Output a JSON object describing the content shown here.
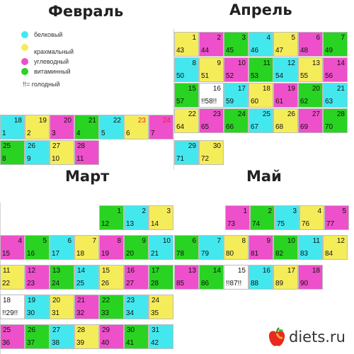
{
  "titles": [
    "Февраль",
    "Апрель",
    "Март",
    "Май"
  ],
  "legend": {
    "items": [
      {
        "label": "белковый",
        "color": "#43e8ee"
      },
      {
        "label": "крахмальный",
        "color": "#f5ec5a"
      },
      {
        "label": "углеводный",
        "color": "#ee4fca"
      },
      {
        "label": "витаминный",
        "color": "#29d321"
      }
    ],
    "fast_note": "!!= голодный"
  },
  "logo": {
    "text": "diets.ru"
  },
  "colors": {
    "C": "#43e8ee",
    "Y": "#f5ec5a",
    "M": "#ee4fca",
    "G": "#29d321",
    "W": "#ffffff",
    "R": "#e8291f"
  },
  "grids": [
    {
      "id": "feb",
      "cells": [
        {
          "c": "C",
          "t": [
            [
              "tr",
              "18"
            ],
            [
              "bl",
              "1"
            ]
          ]
        },
        {
          "c": "Y",
          "t": [
            [
              "tr",
              "19"
            ],
            [
              "bl",
              "2"
            ]
          ]
        },
        {
          "c": "M",
          "t": [
            [
              "tr",
              "20"
            ],
            [
              "bl",
              "3"
            ]
          ]
        },
        {
          "c": "G",
          "t": [
            [
              "tr",
              "21"
            ],
            [
              "bl",
              "4"
            ]
          ]
        },
        {
          "c": "C",
          "t": [
            [
              "tr",
              "22"
            ],
            [
              "bl",
              "5"
            ]
          ]
        },
        {
          "c": "Y",
          "t": [
            [
              "tr",
              "23"
            ],
            [
              "bl",
              "6"
            ]
          ],
          "red": true
        },
        {
          "c": "M",
          "t": [
            [
              "tr",
              "24"
            ],
            [
              "bl",
              "7"
            ]
          ],
          "red": true
        },
        {
          "c": "G",
          "t": [
            [
              "tl",
              "25"
            ],
            [
              "bl",
              "8"
            ]
          ]
        },
        {
          "c": "C",
          "t": [
            [
              "tl",
              "26"
            ],
            [
              "bl",
              "9"
            ]
          ]
        },
        {
          "c": "Y",
          "t": [
            [
              "tl",
              "27"
            ],
            [
              "bl",
              "10"
            ]
          ]
        },
        {
          "c": "M",
          "t": [
            [
              "tl",
              "28"
            ],
            [
              "bl",
              "11"
            ]
          ]
        }
      ]
    },
    {
      "id": "apr",
      "cells": [
        {
          "c": "Y",
          "t": [
            [
              "tr",
              "1"
            ],
            [
              "bl",
              "43"
            ]
          ]
        },
        {
          "c": "M",
          "t": [
            [
              "tr",
              "2"
            ],
            [
              "bl",
              "44"
            ]
          ]
        },
        {
          "c": "G",
          "t": [
            [
              "tr",
              "3"
            ],
            [
              "bl",
              "45"
            ]
          ]
        },
        {
          "c": "C",
          "t": [
            [
              "tr",
              "4"
            ],
            [
              "bl",
              "46"
            ]
          ]
        },
        {
          "c": "Y",
          "t": [
            [
              "tr",
              "5"
            ],
            [
              "bl",
              "47"
            ]
          ]
        },
        {
          "c": "M",
          "t": [
            [
              "tr",
              "6"
            ],
            [
              "bl",
              "48"
            ]
          ]
        },
        {
          "c": "G",
          "t": [
            [
              "tr",
              "7"
            ],
            [
              "bl",
              "49"
            ]
          ]
        },
        {
          "c": "C",
          "t": [
            [
              "tr",
              "8"
            ],
            [
              "bl",
              "50"
            ]
          ]
        },
        {
          "c": "Y",
          "t": [
            [
              "tr",
              "9"
            ],
            [
              "bl",
              "51"
            ]
          ]
        },
        {
          "c": "M",
          "t": [
            [
              "tr",
              "10"
            ],
            [
              "bl",
              "52"
            ]
          ]
        },
        {
          "c": "G",
          "t": [
            [
              "tr",
              "11"
            ],
            [
              "bl",
              "53"
            ]
          ]
        },
        {
          "c": "C",
          "t": [
            [
              "tr",
              "12"
            ],
            [
              "bl",
              "54"
            ]
          ]
        },
        {
          "c": "Y",
          "t": [
            [
              "tr",
              "13"
            ],
            [
              "bl",
              "55"
            ]
          ]
        },
        {
          "c": "M",
          "t": [
            [
              "tr",
              "14"
            ],
            [
              "bl",
              "56"
            ]
          ]
        },
        {
          "c": "G",
          "t": [
            [
              "tr",
              "15"
            ],
            [
              "bl",
              "57"
            ]
          ]
        },
        {
          "c": "W",
          "t": [
            [
              "tr",
              "16"
            ],
            [
              "bl",
              "!!58!!"
            ]
          ]
        },
        {
          "c": "C",
          "t": [
            [
              "tr",
              "17"
            ],
            [
              "bl",
              "59"
            ]
          ]
        },
        {
          "c": "Y",
          "t": [
            [
              "tr",
              "18"
            ],
            [
              "bl",
              "60"
            ]
          ]
        },
        {
          "c": "M",
          "t": [
            [
              "tr",
              "19"
            ],
            [
              "bl",
              "61"
            ]
          ]
        },
        {
          "c": "G",
          "t": [
            [
              "tr",
              "20"
            ],
            [
              "bl",
              "62"
            ]
          ]
        },
        {
          "c": "C",
          "t": [
            [
              "tr",
              "21"
            ],
            [
              "bl",
              "63"
            ]
          ]
        },
        {
          "c": "Y",
          "t": [
            [
              "tr",
              "22"
            ],
            [
              "bl",
              "64"
            ]
          ]
        },
        {
          "c": "M",
          "t": [
            [
              "tr",
              "23"
            ],
            [
              "bl",
              "65"
            ]
          ]
        },
        {
          "c": "G",
          "t": [
            [
              "tr",
              "24"
            ],
            [
              "bl",
              "66"
            ]
          ]
        },
        {
          "c": "C",
          "t": [
            [
              "tr",
              "25"
            ],
            [
              "bl",
              "67"
            ]
          ]
        },
        {
          "c": "Y",
          "t": [
            [
              "tr",
              "26"
            ],
            [
              "bl",
              "68"
            ]
          ]
        },
        {
          "c": "M",
          "t": [
            [
              "tr",
              "27"
            ],
            [
              "bl",
              "69"
            ]
          ]
        },
        {
          "c": "G",
          "t": [
            [
              "tr",
              "28"
            ],
            [
              "bl",
              "70"
            ]
          ]
        },
        {
          "c": "C",
          "t": [
            [
              "tr",
              "29"
            ],
            [
              "bl",
              "71"
            ]
          ]
        },
        {
          "c": "Y",
          "t": [
            [
              "tr",
              "30"
            ],
            [
              "bl",
              "72"
            ]
          ]
        }
      ]
    },
    {
      "id": "mar",
      "cells": [
        {
          "c": "G",
          "t": [
            [
              "tr",
              "1"
            ],
            [
              "bl",
              "12"
            ]
          ]
        },
        {
          "c": "C",
          "t": [
            [
              "tr",
              "2"
            ],
            [
              "bl",
              "13"
            ]
          ]
        },
        {
          "c": "Y",
          "t": [
            [
              "tr",
              "3"
            ],
            [
              "bl",
              "14"
            ]
          ]
        },
        {
          "c": "M",
          "t": [
            [
              "tr",
              "4"
            ],
            [
              "bl",
              "15"
            ]
          ]
        },
        {
          "c": "G",
          "t": [
            [
              "tr",
              "5"
            ],
            [
              "bl",
              "16"
            ]
          ]
        },
        {
          "c": "C",
          "t": [
            [
              "tr",
              "6"
            ],
            [
              "bl",
              "17"
            ]
          ]
        },
        {
          "c": "Y",
          "t": [
            [
              "tr",
              "7"
            ],
            [
              "bl",
              "18"
            ]
          ]
        },
        {
          "c": "M",
          "t": [
            [
              "tr",
              "8"
            ],
            [
              "bl",
              "19"
            ]
          ]
        },
        {
          "c": "G",
          "t": [
            [
              "tr",
              "9"
            ],
            [
              "bl",
              "20"
            ]
          ]
        },
        {
          "c": "C",
          "t": [
            [
              "tr",
              "10"
            ],
            [
              "bl",
              "21"
            ]
          ]
        },
        {
          "c": "Y",
          "t": [
            [
              "tl",
              "11"
            ],
            [
              "bl",
              "22"
            ]
          ]
        },
        {
          "c": "M",
          "t": [
            [
              "tl",
              "12"
            ],
            [
              "bl",
              "23"
            ]
          ]
        },
        {
          "c": "G",
          "t": [
            [
              "tl",
              "13"
            ],
            [
              "bl",
              "24"
            ]
          ]
        },
        {
          "c": "C",
          "t": [
            [
              "tl",
              "14"
            ],
            [
              "bl",
              "25"
            ]
          ]
        },
        {
          "c": "Y",
          "t": [
            [
              "tl",
              "15"
            ],
            [
              "bl",
              "26"
            ]
          ]
        },
        {
          "c": "M",
          "t": [
            [
              "tl",
              "16"
            ],
            [
              "bl",
              "27"
            ]
          ]
        },
        {
          "c": "G",
          "t": [
            [
              "tl",
              "17"
            ],
            [
              "bl",
              "28"
            ]
          ]
        },
        {
          "c": "W",
          "t": [
            [
              "tl",
              "18"
            ],
            [
              "bl",
              "!!29!!"
            ]
          ]
        },
        {
          "c": "C",
          "t": [
            [
              "tl",
              "19"
            ],
            [
              "bl",
              "30"
            ]
          ]
        },
        {
          "c": "Y",
          "t": [
            [
              "tl",
              "20"
            ],
            [
              "bl",
              "31"
            ]
          ]
        },
        {
          "c": "M",
          "t": [
            [
              "tl",
              "21"
            ],
            [
              "bl",
              "32"
            ]
          ]
        },
        {
          "c": "G",
          "t": [
            [
              "tl",
              "22"
            ],
            [
              "bl",
              "33"
            ]
          ]
        },
        {
          "c": "C",
          "t": [
            [
              "tl",
              "23"
            ],
            [
              "bl",
              "34"
            ]
          ]
        },
        {
          "c": "Y",
          "t": [
            [
              "tl",
              "24"
            ],
            [
              "bl",
              "35"
            ]
          ]
        },
        {
          "c": "M",
          "t": [
            [
              "tl",
              "25"
            ],
            [
              "bl",
              "36"
            ]
          ]
        },
        {
          "c": "G",
          "t": [
            [
              "tl",
              "26"
            ],
            [
              "bl",
              "37"
            ]
          ]
        },
        {
          "c": "C",
          "t": [
            [
              "tl",
              "27"
            ],
            [
              "bl",
              "38"
            ]
          ]
        },
        {
          "c": "Y",
          "t": [
            [
              "tl",
              "28"
            ],
            [
              "bl",
              "39"
            ]
          ]
        },
        {
          "c": "M",
          "t": [
            [
              "tl",
              "29"
            ],
            [
              "bl",
              "40"
            ]
          ]
        },
        {
          "c": "G",
          "t": [
            [
              "tl",
              "30"
            ],
            [
              "bl",
              "41"
            ]
          ]
        },
        {
          "c": "C",
          "t": [
            [
              "tl",
              "31"
            ],
            [
              "bl",
              "42"
            ]
          ]
        }
      ]
    },
    {
      "id": "may",
      "cells": [
        {
          "c": "M",
          "t": [
            [
              "tr",
              "1"
            ],
            [
              "bl",
              "73"
            ]
          ]
        },
        {
          "c": "G",
          "t": [
            [
              "tr",
              "2"
            ],
            [
              "bl",
              "74"
            ]
          ]
        },
        {
          "c": "C",
          "t": [
            [
              "tr",
              "3"
            ],
            [
              "bl",
              "75"
            ]
          ]
        },
        {
          "c": "Y",
          "t": [
            [
              "tr",
              "4"
            ],
            [
              "bl",
              "76"
            ]
          ]
        },
        {
          "c": "M",
          "t": [
            [
              "tr",
              "5"
            ],
            [
              "bl",
              "77"
            ]
          ]
        },
        {
          "c": "G",
          "t": [
            [
              "tr",
              "6"
            ],
            [
              "bl",
              "78"
            ]
          ]
        },
        {
          "c": "C",
          "t": [
            [
              "tr",
              "7"
            ],
            [
              "bl",
              "79"
            ]
          ]
        },
        {
          "c": "Y",
          "t": [
            [
              "tr",
              "8"
            ],
            [
              "bl",
              "80"
            ]
          ]
        },
        {
          "c": "M",
          "t": [
            [
              "tr",
              "9"
            ],
            [
              "bl",
              "81"
            ]
          ]
        },
        {
          "c": "G",
          "t": [
            [
              "tr",
              "10"
            ],
            [
              "bl",
              "82"
            ]
          ]
        },
        {
          "c": "C",
          "t": [
            [
              "tr",
              "11"
            ],
            [
              "bl",
              "83"
            ]
          ]
        },
        {
          "c": "Y",
          "t": [
            [
              "tr",
              "12"
            ],
            [
              "bl",
              "84"
            ]
          ]
        },
        {
          "c": "M",
          "t": [
            [
              "tr",
              "13"
            ],
            [
              "bl",
              "85"
            ]
          ]
        },
        {
          "c": "G",
          "t": [
            [
              "tr",
              "14"
            ],
            [
              "bl",
              "86"
            ]
          ]
        },
        {
          "c": "W",
          "t": [
            [
              "tr",
              "15"
            ],
            [
              "bl",
              "!!87!!"
            ]
          ]
        },
        {
          "c": "C",
          "t": [
            [
              "tr",
              "16"
            ],
            [
              "bl",
              "88"
            ]
          ]
        },
        {
          "c": "Y",
          "t": [
            [
              "tr",
              "17"
            ],
            [
              "bl",
              "89"
            ]
          ]
        },
        {
          "c": "M",
          "t": [
            [
              "tr",
              "18"
            ],
            [
              "bl",
              "90"
            ]
          ]
        }
      ]
    }
  ]
}
